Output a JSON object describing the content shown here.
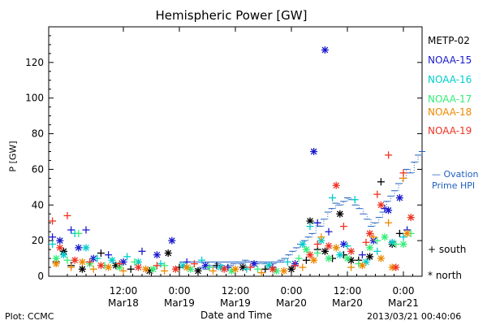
{
  "chart_data": {
    "type": "scatter",
    "title": "Hemispheric Power [GW]",
    "ylabel": "P [GW]",
    "xlabel": "Date and Time",
    "ylim": [
      0,
      140
    ],
    "yticks": [
      0,
      20,
      40,
      60,
      80,
      100,
      120
    ],
    "xlim": [
      "2013-03-17 03:00",
      "2013-03-21 01:00"
    ],
    "xticks": [
      {
        "time": "12:00",
        "date": "Mar18"
      },
      {
        "time": "0:00",
        "date": "Mar19"
      },
      {
        "time": "12:00",
        "date": "Mar19"
      },
      {
        "time": "0:00",
        "date": "Mar20"
      },
      {
        "time": "12:00",
        "date": "Mar20"
      },
      {
        "time": "0:00",
        "date": "Mar21"
      }
    ],
    "grid": false,
    "legend_position": "right",
    "series": [
      {
        "name": "METP-02",
        "color": "#000000",
        "points": [
          [
            2,
            8,
            "+"
          ],
          [
            4,
            14,
            "*"
          ],
          [
            6,
            6,
            "+"
          ],
          [
            9,
            4,
            "*"
          ],
          [
            14,
            13,
            "+"
          ],
          [
            18,
            6,
            "*"
          ],
          [
            22,
            4,
            "+"
          ],
          [
            27,
            3,
            "*"
          ],
          [
            32,
            13,
            "*"
          ],
          [
            35,
            5,
            "+"
          ],
          [
            40,
            3,
            "*"
          ],
          [
            45,
            6,
            "+"
          ],
          [
            52,
            5,
            "*"
          ],
          [
            58,
            4,
            "+"
          ],
          [
            65,
            4,
            "*"
          ],
          [
            69,
            9,
            "+"
          ],
          [
            70,
            31,
            "*"
          ],
          [
            72,
            15,
            "+"
          ],
          [
            74,
            14,
            "*"
          ],
          [
            76,
            10,
            "+"
          ],
          [
            78,
            35,
            "*"
          ],
          [
            79,
            12,
            "+"
          ],
          [
            81,
            9,
            "*"
          ],
          [
            83,
            9,
            "+"
          ],
          [
            86,
            11,
            "*"
          ],
          [
            89,
            53,
            "+"
          ],
          [
            92,
            18,
            "*"
          ],
          [
            94,
            24,
            "+"
          ]
        ]
      },
      {
        "name": "NOAA-15",
        "color": "#1a1acc",
        "points": [
          [
            1,
            22,
            "+"
          ],
          [
            3,
            20,
            "*"
          ],
          [
            6,
            26,
            "+"
          ],
          [
            8,
            16,
            "*"
          ],
          [
            10,
            26,
            "+"
          ],
          [
            12,
            10,
            "*"
          ],
          [
            16,
            12,
            "+"
          ],
          [
            20,
            8,
            "*"
          ],
          [
            25,
            14,
            "+"
          ],
          [
            29,
            12,
            "*"
          ],
          [
            33,
            20,
            "*"
          ],
          [
            37,
            8,
            "+"
          ],
          [
            42,
            6,
            "*"
          ],
          [
            48,
            5,
            "+"
          ],
          [
            55,
            7,
            "*"
          ],
          [
            60,
            5,
            "+"
          ],
          [
            66,
            7,
            "*"
          ],
          [
            71,
            70,
            "*"
          ],
          [
            72,
            30,
            "+"
          ],
          [
            74,
            127,
            "*"
          ],
          [
            75,
            25,
            "+"
          ],
          [
            79,
            18,
            "*"
          ],
          [
            84,
            12,
            "+"
          ],
          [
            87,
            20,
            "*"
          ],
          [
            90,
            38,
            "+"
          ],
          [
            91,
            37,
            "*"
          ],
          [
            94,
            44,
            "*"
          ],
          [
            96,
            26,
            "+"
          ]
        ]
      },
      {
        "name": "NOAA-16",
        "color": "#00cccc",
        "points": [
          [
            1,
            18,
            "+"
          ],
          [
            4,
            12,
            "*"
          ],
          [
            7,
            24,
            "+"
          ],
          [
            10,
            16,
            "*"
          ],
          [
            13,
            10,
            "+"
          ],
          [
            17,
            9,
            "*"
          ],
          [
            21,
            11,
            "+"
          ],
          [
            24,
            8,
            "*"
          ],
          [
            30,
            7,
            "+"
          ],
          [
            36,
            6,
            "*"
          ],
          [
            41,
            9,
            "+"
          ],
          [
            46,
            5,
            "*"
          ],
          [
            53,
            4,
            "+"
          ],
          [
            59,
            6,
            "*"
          ],
          [
            64,
            8,
            "+"
          ],
          [
            68,
            18,
            "*"
          ],
          [
            70,
            28,
            "+"
          ],
          [
            73,
            20,
            "*"
          ],
          [
            76,
            44,
            "+"
          ],
          [
            78,
            12,
            "*"
          ],
          [
            80,
            17,
            "+"
          ],
          [
            82,
            43,
            "+"
          ],
          [
            85,
            8,
            "*"
          ],
          [
            88,
            14,
            "+"
          ],
          [
            92,
            19,
            "*"
          ],
          [
            95,
            22,
            "+"
          ]
        ]
      },
      {
        "name": "NOAA-17",
        "color": "#33ee77",
        "points": [
          [
            2,
            10,
            "*"
          ],
          [
            5,
            9,
            "+"
          ],
          [
            8,
            24,
            "+"
          ],
          [
            11,
            7,
            "*"
          ],
          [
            15,
            6,
            "+"
          ],
          [
            19,
            5,
            "*"
          ],
          [
            23,
            8,
            "+"
          ],
          [
            28,
            4,
            "*"
          ],
          [
            31,
            6,
            "+"
          ],
          [
            38,
            4,
            "*"
          ],
          [
            43,
            5,
            "+"
          ],
          [
            49,
            3,
            "*"
          ],
          [
            56,
            4,
            "+"
          ],
          [
            61,
            3,
            "*"
          ],
          [
            67,
            10,
            "+"
          ],
          [
            69,
            15,
            "*"
          ],
          [
            72,
            13,
            "+"
          ],
          [
            75,
            10,
            "*"
          ],
          [
            77,
            16,
            "+"
          ],
          [
            80,
            10,
            "*"
          ],
          [
            83,
            7,
            "+"
          ],
          [
            86,
            16,
            "*"
          ],
          [
            88,
            20,
            "+"
          ],
          [
            90,
            22,
            "*"
          ],
          [
            93,
            18,
            "+"
          ],
          [
            95,
            18,
            "*"
          ],
          [
            97,
            24,
            "+"
          ]
        ]
      },
      {
        "name": "NOAA-18",
        "color": "#ee8800",
        "points": [
          [
            2,
            7,
            "*"
          ],
          [
            6,
            5,
            "+"
          ],
          [
            9,
            8,
            "*"
          ],
          [
            12,
            4,
            "+"
          ],
          [
            16,
            5,
            "*"
          ],
          [
            20,
            3,
            "+"
          ],
          [
            26,
            4,
            "*"
          ],
          [
            31,
            3,
            "+"
          ],
          [
            37,
            5,
            "*"
          ],
          [
            44,
            3,
            "+"
          ],
          [
            50,
            4,
            "*"
          ],
          [
            57,
            2,
            "+"
          ],
          [
            63,
            3,
            "*"
          ],
          [
            68,
            5,
            "+"
          ],
          [
            71,
            9,
            "*"
          ],
          [
            73,
            22,
            "+"
          ],
          [
            77,
            16,
            "*"
          ],
          [
            81,
            5,
            "+"
          ],
          [
            84,
            6,
            "*"
          ],
          [
            87,
            22,
            "+"
          ],
          [
            89,
            10,
            "*"
          ],
          [
            91,
            30,
            "+"
          ],
          [
            92,
            5,
            "*"
          ],
          [
            95,
            55,
            "+"
          ],
          [
            96,
            24,
            "*"
          ]
        ]
      },
      {
        "name": "NOAA-19",
        "color": "#ee3322",
        "points": [
          [
            1,
            31,
            "+"
          ],
          [
            3,
            16,
            "*"
          ],
          [
            5,
            34,
            "+"
          ],
          [
            7,
            9,
            "*"
          ],
          [
            11,
            8,
            "+"
          ],
          [
            14,
            6,
            "*"
          ],
          [
            19,
            7,
            "+"
          ],
          [
            24,
            5,
            "*"
          ],
          [
            29,
            6,
            "+"
          ],
          [
            34,
            4,
            "*"
          ],
          [
            39,
            7,
            "+"
          ],
          [
            47,
            4,
            "*"
          ],
          [
            54,
            5,
            "+"
          ],
          [
            60,
            4,
            "*"
          ],
          [
            66,
            6,
            "+"
          ],
          [
            70,
            12,
            "*"
          ],
          [
            72,
            18,
            "+"
          ],
          [
            75,
            17,
            "*"
          ],
          [
            77,
            51,
            "*"
          ],
          [
            79,
            28,
            "+"
          ],
          [
            81,
            14,
            "*"
          ],
          [
            85,
            19,
            "+"
          ],
          [
            86,
            24,
            "*"
          ],
          [
            88,
            46,
            "+"
          ],
          [
            89,
            40,
            "*"
          ],
          [
            91,
            68,
            "+"
          ],
          [
            93,
            5,
            "*"
          ],
          [
            95,
            58,
            "+"
          ],
          [
            97,
            33,
            "*"
          ]
        ]
      }
    ],
    "ovation": {
      "label": "— Ovation\nPrime HPI",
      "color": "#1f5fbf",
      "values": [
        4,
        5,
        4,
        6,
        5,
        7,
        6,
        5,
        6,
        7,
        8,
        7,
        9,
        8,
        8,
        7,
        8,
        7,
        6,
        7,
        8,
        9,
        10,
        12,
        14,
        16,
        18,
        20,
        22,
        24,
        30,
        28,
        32,
        36,
        38,
        41,
        40,
        42,
        44,
        43,
        40,
        38,
        35,
        32,
        28,
        30,
        33,
        36,
        42,
        45,
        48,
        52,
        55,
        60,
        58,
        64,
        68,
        70
      ]
    },
    "step_line": {
      "from": 35,
      "to": 65,
      "value": 8,
      "color": "#1f5fbf"
    },
    "marker_legend": [
      {
        "symbol": "+",
        "label": "south"
      },
      {
        "symbol": "*",
        "label": "north"
      }
    ]
  },
  "footer": {
    "plot_label": "Plot: CCMC",
    "timestamp": "2013/03/21 00:40:06"
  }
}
